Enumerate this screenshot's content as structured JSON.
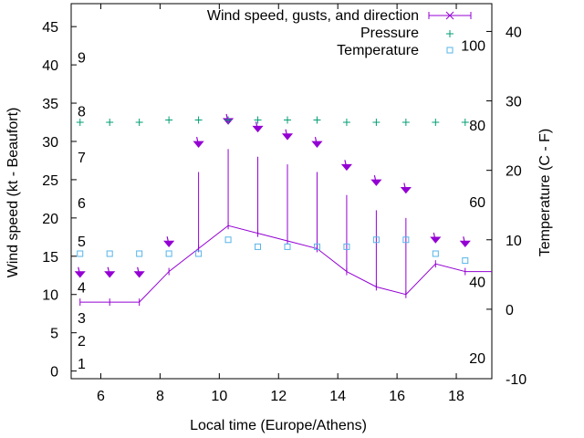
{
  "chart_data": {
    "type": "line",
    "xlabel": "Local time (Europe/Athens)",
    "ylabel": "Wind speed (kt - Beaufort)",
    "y2label": "Temperature (C - F)",
    "xlim": [
      5,
      19.2
    ],
    "ylim": [
      -1,
      48
    ],
    "y2lim": [
      -10,
      44
    ],
    "grid": false,
    "legend_position": "top-right",
    "x_ticks": [
      "6",
      "8",
      "10",
      "12",
      "14",
      "16",
      "18"
    ],
    "y_ticks": [
      "0",
      "5",
      "10",
      "15",
      "20",
      "25",
      "30",
      "35",
      "40",
      "45"
    ],
    "y2_ticks": [
      "-10",
      "0",
      "10",
      "20",
      "30",
      "40"
    ],
    "beaufort_labels": [
      {
        "text": "1",
        "kt": 1
      },
      {
        "text": "2",
        "kt": 4
      },
      {
        "text": "3",
        "kt": 7
      },
      {
        "text": "4",
        "kt": 11
      },
      {
        "text": "5",
        "kt": 17
      },
      {
        "text": "6",
        "kt": 22
      },
      {
        "text": "7",
        "kt": 28
      },
      {
        "text": "8",
        "kt": 34
      },
      {
        "text": "9",
        "kt": 41
      }
    ],
    "fahrenheit_labels": [
      {
        "text": "20",
        "c": -7
      },
      {
        "text": "40",
        "c": 4
      },
      {
        "text": "60",
        "c": 15.5
      },
      {
        "text": "80",
        "c": 26.5
      },
      {
        "text": "100",
        "c": 38
      }
    ],
    "legend": [
      {
        "label": "Wind speed, gusts, and direction",
        "color": "#9400d3"
      },
      {
        "label": "Pressure",
        "color": "#009e73"
      },
      {
        "label": "Temperature",
        "color": "#56b4e9"
      }
    ],
    "series": [
      {
        "name": "Wind speed, gusts, and direction",
        "x": [
          5.3,
          6.3,
          7.3,
          8.3,
          9.3,
          10.3,
          11.3,
          12.3,
          13.3,
          14.3,
          15.3,
          16.3,
          17.3,
          18.3,
          19.2
        ],
        "values": [
          9,
          9,
          9,
          13,
          16,
          19,
          18,
          17,
          16,
          13,
          11,
          10,
          14,
          13,
          13
        ],
        "gusts": [
          9,
          9,
          9,
          13,
          26,
          29,
          28,
          27,
          26,
          23,
          21,
          20,
          14,
          13,
          null
        ],
        "direction_marker_y": [
          12.5,
          12.5,
          12.5,
          16.5,
          29.5,
          32.5,
          31.5,
          30.5,
          29.5,
          26.5,
          24.5,
          23.5,
          17,
          16.5,
          null
        ]
      },
      {
        "name": "Pressure",
        "x": [
          5.3,
          6.3,
          7.3,
          8.3,
          9.3,
          10.3,
          11.3,
          12.3,
          13.3,
          14.3,
          15.3,
          16.3,
          17.3,
          18.3
        ],
        "values": [
          32.5,
          32.5,
          32.5,
          32.8,
          32.8,
          32.8,
          32.8,
          32.8,
          32.8,
          32.5,
          32.5,
          32.5,
          32.5,
          32.5
        ]
      },
      {
        "name": "Temperature",
        "x": [
          5.3,
          6.3,
          7.3,
          8.3,
          9.3,
          10.3,
          11.3,
          12.3,
          13.3,
          14.3,
          15.3,
          16.3,
          17.3,
          18.3
        ],
        "values": [
          8,
          8,
          8,
          8,
          8,
          10,
          9,
          9,
          9,
          9,
          10,
          10,
          8,
          7
        ]
      }
    ]
  }
}
